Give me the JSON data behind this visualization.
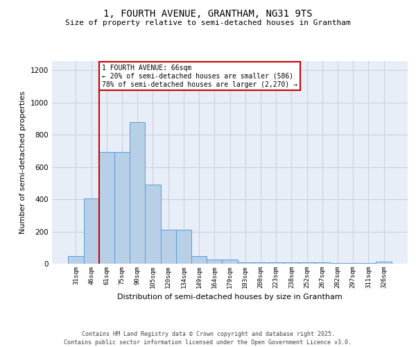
{
  "title_line1": "1, FOURTH AVENUE, GRANTHAM, NG31 9TS",
  "title_line2": "Size of property relative to semi-detached houses in Grantham",
  "xlabel": "Distribution of semi-detached houses by size in Grantham",
  "ylabel": "Number of semi-detached properties",
  "categories": [
    "31sqm",
    "46sqm",
    "61sqm",
    "75sqm",
    "90sqm",
    "105sqm",
    "120sqm",
    "134sqm",
    "149sqm",
    "164sqm",
    "179sqm",
    "193sqm",
    "208sqm",
    "223sqm",
    "238sqm",
    "252sqm",
    "267sqm",
    "282sqm",
    "297sqm",
    "311sqm",
    "326sqm"
  ],
  "values": [
    48,
    404,
    693,
    693,
    880,
    493,
    210,
    210,
    48,
    28,
    28,
    10,
    10,
    10,
    10,
    7,
    7,
    5,
    5,
    3,
    12
  ],
  "bar_color": "#b8cfe8",
  "bar_edge_color": "#5b9bd5",
  "grid_color": "#c8d0e0",
  "vline_x_index": 2,
  "vline_color": "#cc0000",
  "annotation_line1": "1 FOURTH AVENUE: 66sqm",
  "annotation_line2": "← 20% of semi-detached houses are smaller (586)",
  "annotation_line3": "78% of semi-detached houses are larger (2,270) →",
  "ylim_max": 1260,
  "yticks": [
    0,
    200,
    400,
    600,
    800,
    1000,
    1200
  ],
  "footer_line1": "Contains HM Land Registry data © Crown copyright and database right 2025.",
  "footer_line2": "Contains public sector information licensed under the Open Government Licence v3.0.",
  "bg_color": "#e8eef8",
  "title_fontsize": 10,
  "subtitle_fontsize": 8,
  "ylabel_fontsize": 8,
  "xlabel_fontsize": 8,
  "tick_fontsize": 6.5,
  "footer_fontsize": 6,
  "ann_fontsize": 7
}
